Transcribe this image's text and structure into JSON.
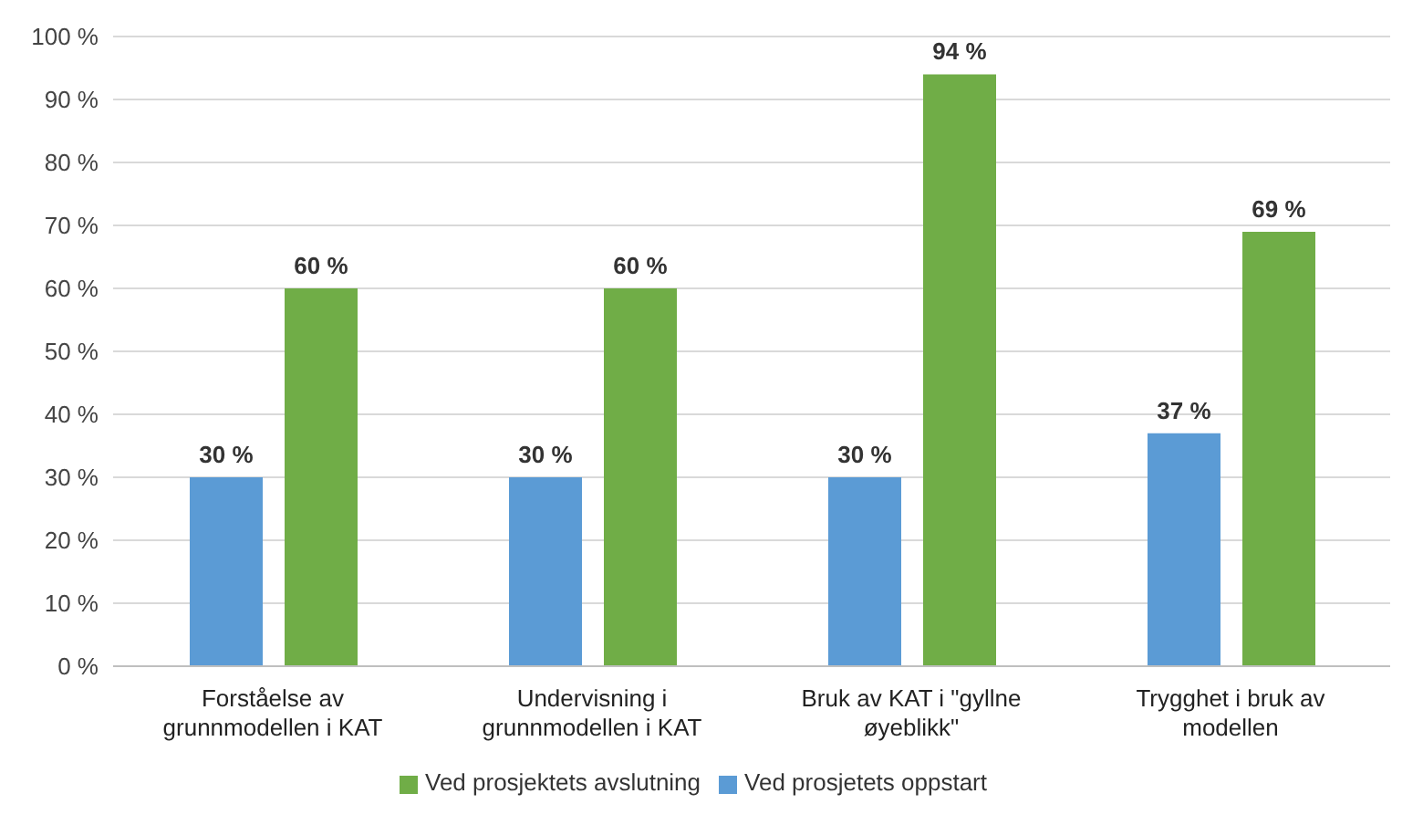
{
  "chart_data": {
    "type": "bar",
    "categories": [
      "Forståelse av grunnmodellen i KAT",
      "Undervisning i grunnmodellen i KAT",
      "Bruk av KAT i \"gyllne øyeblikk\"",
      "Trygghet i bruk av modellen"
    ],
    "series": [
      {
        "name": "Ved prosjetets oppstart",
        "color": "#5b9bd5",
        "values": [
          30,
          30,
          30,
          37
        ],
        "value_labels": [
          "30 %",
          "30 %",
          "30 %",
          "37 %"
        ]
      },
      {
        "name": "Ved prosjektets avslutning",
        "color": "#70ad47",
        "values": [
          60,
          60,
          94,
          69
        ],
        "value_labels": [
          "60 %",
          "60 %",
          "94 %",
          "69 %"
        ]
      }
    ],
    "ylim": [
      0,
      100
    ],
    "yticks": [
      {
        "value": 0,
        "label": "0 %"
      },
      {
        "value": 10,
        "label": "10 %"
      },
      {
        "value": 20,
        "label": "20 %"
      },
      {
        "value": 30,
        "label": "30 %"
      },
      {
        "value": 40,
        "label": "40 %"
      },
      {
        "value": 50,
        "label": "50 %"
      },
      {
        "value": 60,
        "label": "60 %"
      },
      {
        "value": 70,
        "label": "70 %"
      },
      {
        "value": 80,
        "label": "80 %"
      },
      {
        "value": 90,
        "label": "90 %"
      },
      {
        "value": 100,
        "label": "100 %"
      }
    ],
    "grid": "y",
    "legend": "bottom"
  }
}
